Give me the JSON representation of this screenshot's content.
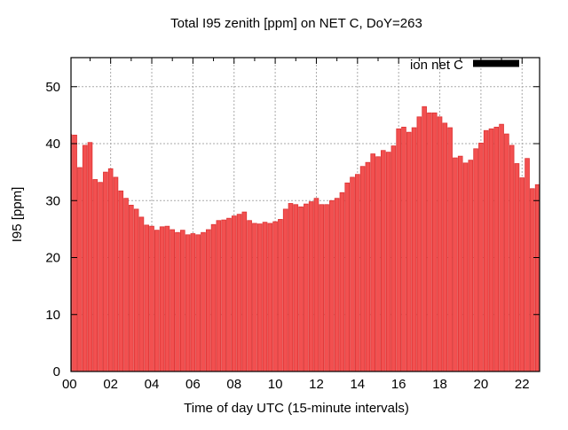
{
  "chart_data": {
    "type": "bar",
    "title": "Total I95 zenith [ppm] on NET C, DoY=263",
    "xlabel": "Time of day UTC (15-minute intervals)",
    "ylabel": "I95 [ppm]",
    "legend": {
      "label": "ion net C",
      "position": "top-right-inside",
      "swatch_color": "#000000"
    },
    "bar_color": "#f25050",
    "bar_border_color": "#dd3333",
    "grid": true,
    "grid_color": "#aaaaaa",
    "axis_color": "#000000",
    "ylim": [
      0,
      55.1
    ],
    "y_ticks": [
      0,
      10,
      20,
      30,
      40,
      50
    ],
    "y_tick_labels": [
      "0",
      "10",
      "20",
      "30",
      "40",
      "50"
    ],
    "x_major_tick_hours": [
      0,
      2,
      4,
      6,
      8,
      10,
      12,
      14,
      16,
      18,
      20,
      22
    ],
    "x_tick_labels": [
      "00",
      "02",
      "04",
      "06",
      "08",
      "10",
      "12",
      "14",
      "16",
      "18",
      "20",
      "22"
    ],
    "x_minor_tick_every_hours": 1,
    "start_time": "00:00",
    "interval_minutes": 15,
    "values": [
      41.6,
      41.5,
      35.8,
      39.7,
      40.2,
      33.7,
      33.2,
      35.0,
      35.6,
      34.1,
      31.7,
      30.4,
      29.2,
      28.5,
      27.1,
      25.7,
      25.5,
      24.8,
      25.4,
      25.5,
      24.9,
      24.4,
      24.8,
      24.0,
      24.2,
      24.0,
      24.4,
      24.9,
      25.8,
      26.5,
      26.6,
      26.9,
      27.3,
      27.6,
      28.0,
      26.5,
      26.0,
      25.9,
      26.2,
      26.0,
      26.3,
      26.7,
      28.5,
      29.5,
      29.3,
      28.9,
      29.4,
      29.8,
      30.4,
      29.3,
      29.3,
      30.0,
      30.4,
      31.4,
      33.1,
      34.1,
      34.6,
      36.0,
      36.7,
      38.2,
      37.7,
      38.8,
      38.5,
      39.6,
      42.6,
      42.9,
      42.0,
      42.8,
      44.7,
      46.5,
      45.4,
      45.4,
      44.7,
      43.6,
      42.8,
      37.5,
      37.8,
      36.6,
      37.1,
      39.1,
      40.1,
      42.3,
      42.6,
      42.9,
      43.4,
      41.7,
      39.7,
      36.5,
      34.0,
      37.4,
      32.1,
      32.8
    ]
  }
}
